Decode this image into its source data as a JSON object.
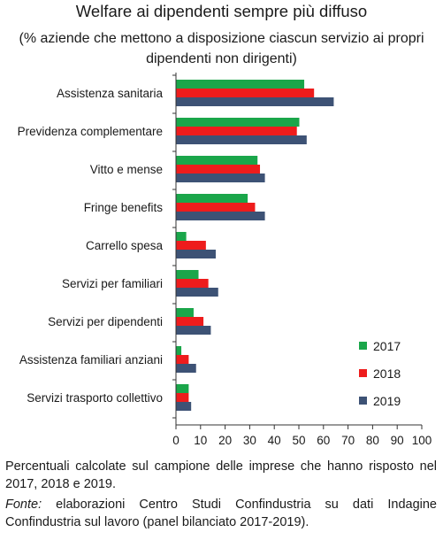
{
  "title": "Welfare ai dipendenti sempre più diffuso",
  "subtitle": "(% aziende che mettono a disposizione ciascun servizio ai propri dipendenti non dirigenti)",
  "note": "Percentuali calcolate sul campione delle imprese che hanno risposto nel 2017, 2018 e 2019.",
  "source_label": "Fonte:",
  "source_text": " elaborazioni Centro Studi Confindustria su dati Indagine Confindustria sul lavoro (panel bilanciato 2017-2019).",
  "colors": {
    "2017": "#1aa64a",
    "2018": "#ee1c1c",
    "2019": "#3d5275"
  },
  "chart_data": {
    "type": "bar",
    "orientation": "horizontal",
    "categories": [
      "Assistenza sanitaria",
      "Previdenza complementare",
      "Vitto e mense",
      "Fringe benefits",
      "Carrello spesa",
      "Servizi per familiari",
      "Servizi per dipendenti",
      "Assistenza familiari anziani",
      "Servizi trasporto collettivo"
    ],
    "series": [
      {
        "name": "2017",
        "values": [
          52,
          50,
          33,
          29,
          4,
          9,
          7,
          2,
          5
        ]
      },
      {
        "name": "2018",
        "values": [
          56,
          49,
          34,
          32,
          12,
          13,
          11,
          5,
          5
        ]
      },
      {
        "name": "2019",
        "values": [
          64,
          53,
          36,
          36,
          16,
          17,
          14,
          8,
          6
        ]
      }
    ],
    "xlim": [
      0,
      100
    ],
    "xticks": [
      0,
      10,
      20,
      30,
      40,
      50,
      60,
      70,
      80,
      90,
      100
    ],
    "grid": false,
    "legend_position": "bottom-right"
  }
}
